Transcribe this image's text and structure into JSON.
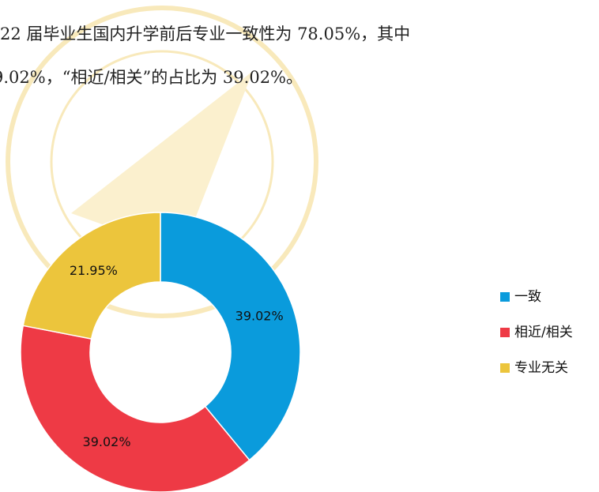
{
  "text_lines": [
    "22 届毕业生国内升学前后专业一致性为 78.05%，其中",
    "9.02%，“相近/相关”的占比为 39.02%。"
  ],
  "chart_data": {
    "type": "donut",
    "categories": [
      "一致",
      "相近/相关",
      "专业无关"
    ],
    "values": [
      39.02,
      39.02,
      21.95
    ],
    "value_labels": [
      "39.02%",
      "39.02%",
      "21.95%"
    ],
    "colors": [
      "#0a9bdc",
      "#ee3a45",
      "#ecc53c"
    ],
    "legend": "right"
  }
}
